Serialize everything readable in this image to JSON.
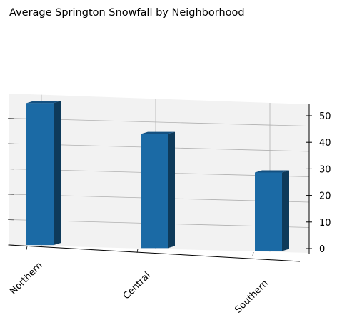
{
  "chart_data": {
    "type": "bar",
    "title": "Average Springton Snowfall by Neighborhood",
    "xlabel": "",
    "ylabel": "",
    "categories": [
      "Northern",
      "Central",
      "Southern"
    ],
    "values": [
      56,
      45,
      31
    ],
    "ylim": [
      0,
      58
    ],
    "yticks": [
      0,
      10,
      20,
      30,
      40,
      50
    ],
    "grid": true,
    "projection": "3d",
    "colors": {
      "bar_front": "#1b6aa5",
      "bar_side": "#0e3a5a",
      "bar_top": "#145080",
      "pane": "#f2f2f2",
      "grid": "#b0b0b0",
      "axis": "#000000"
    }
  }
}
